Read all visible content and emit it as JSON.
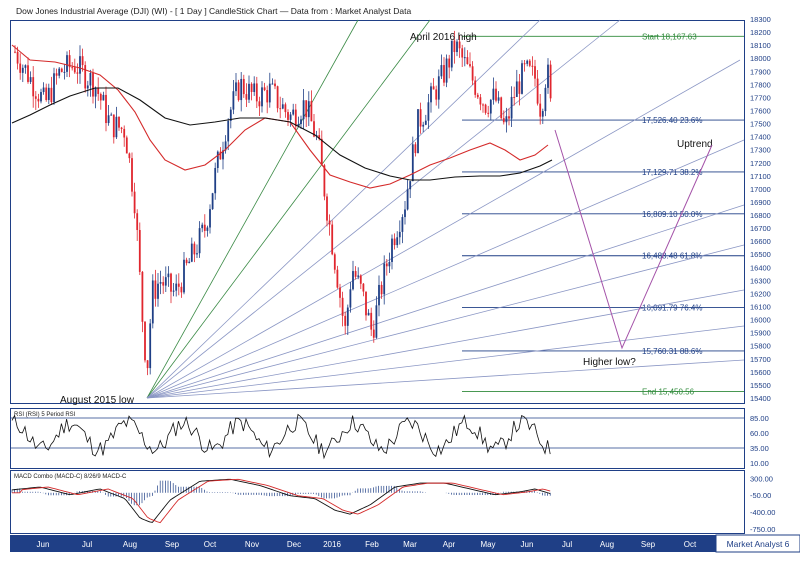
{
  "title": "Dow Jones Industrial Average (DJI) (WI) -  [ 1 Day ] CandleStick Chart — Data from : Market Analyst Data",
  "footer": "Market Analyst 6",
  "colors": {
    "frame": "#1f3f86",
    "bull": "#1f3f86",
    "bear": "#e0262e",
    "ma_short": "#d42a2a",
    "ma_long": "#111111",
    "fib": "#1f3f86",
    "start_end": "#2f8a3a",
    "fan": "#8a96c4",
    "path": "#a452a8",
    "rsi": "#111111",
    "macd_signal": "#d42a2a"
  },
  "chart_data": [
    {
      "type": "candlestick",
      "title": "Dow Jones Industrial Average (DJI) (WI) -  [ 1 Day ] CandleStick Chart — Data from : Market Analyst Data",
      "x_labels": [
        "Jun",
        "Jul",
        "Aug",
        "Sep",
        "Oct",
        "Nov",
        "Dec",
        "2016",
        "Feb",
        "Mar",
        "Apr",
        "May",
        "Jun",
        "Jul",
        "Aug",
        "Sep",
        "Oct"
      ],
      "y_ticks": [
        15400,
        15500,
        15600,
        15700,
        15800,
        15900,
        16000,
        16100,
        16200,
        16300,
        16400,
        16500,
        16600,
        16700,
        16800,
        16900,
        17000,
        17100,
        17200,
        17300,
        17400,
        17500,
        17600,
        17700,
        17800,
        17900,
        18000,
        18100,
        18200,
        18300
      ],
      "ylim": [
        15300,
        18350
      ],
      "approx_closes": {
        "months": [
          "Jun",
          "Jul",
          "Aug",
          "Sep",
          "Oct",
          "Nov",
          "Dec",
          "2016",
          "Feb",
          "Mar",
          "Apr",
          "May",
          "Jun"
        ],
        "values": [
          17700,
          17900,
          17400,
          16300,
          16600,
          17800,
          17500,
          17400,
          16000,
          16500,
          17600,
          17800,
          17700
        ]
      },
      "fib_levels": [
        {
          "label": "Start 18,167.63",
          "value": 18167.63
        },
        {
          "label": "17,526.40 23.6%",
          "value": 17526.4
        },
        {
          "label": "17,129.71 38.2%",
          "value": 17129.71
        },
        {
          "label": "16,809.10 50.0%",
          "value": 16809.1
        },
        {
          "label": "16,488.48 61.8%",
          "value": 16488.48
        },
        {
          "label": "16,091.79 76.4%",
          "value": 16091.79
        },
        {
          "label": "15,760.31 88.6%",
          "value": 15760.31
        },
        {
          "label": "End 15,450.56",
          "value": 15450.56
        }
      ],
      "annotations": [
        "April 2016 high",
        "August 2015 low",
        "Uptrend",
        "Higher low?"
      ]
    },
    {
      "type": "line",
      "title": "RSI (RSI) 5 Period RSI",
      "y_ticks": [
        "85.00",
        "60.00",
        "35.00",
        "10.00"
      ],
      "ylim": [
        0,
        100
      ]
    },
    {
      "type": "line",
      "title": "MACD Combo (MACD-C) 8/26/9 MACD-C",
      "y_ticks": [
        "300.00",
        "-50.00",
        "-400.00",
        "-750.00"
      ],
      "ylim": [
        -850,
        450
      ]
    }
  ]
}
